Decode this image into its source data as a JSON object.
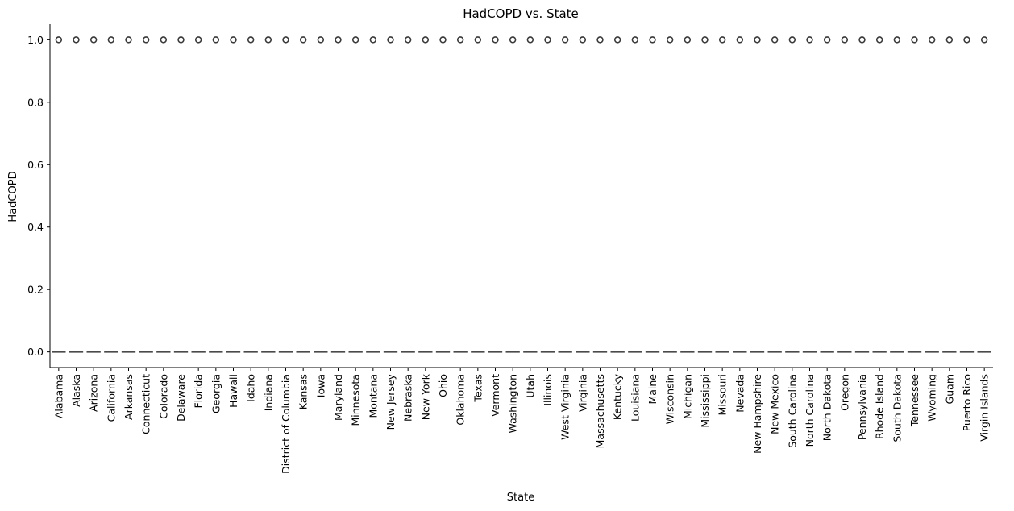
{
  "chart_data": {
    "type": "box",
    "title": "HadCOPD vs. State",
    "xlabel": "State",
    "ylabel": "HadCOPD",
    "ylim": [
      -0.05,
      1.05
    ],
    "yticks": [
      "0.0",
      "0.2",
      "0.4",
      "0.6",
      "0.8",
      "1.0"
    ],
    "ytick_values": [
      0.0,
      0.2,
      0.4,
      0.6,
      0.8,
      1.0
    ],
    "box_value": 0.0,
    "outlier_value": 1.0,
    "box_color": "#4a4a4a",
    "categories": [
      "Alabama",
      "Alaska",
      "Arizona",
      "California",
      "Arkansas",
      "Connecticut",
      "Colorado",
      "Delaware",
      "Florida",
      "Georgia",
      "Hawaii",
      "Idaho",
      "Indiana",
      "District of Columbia",
      "Kansas",
      "Iowa",
      "Maryland",
      "Minnesota",
      "Montana",
      "New Jersey",
      "Nebraska",
      "New York",
      "Ohio",
      "Oklahoma",
      "Texas",
      "Vermont",
      "Washington",
      "Utah",
      "Illinois",
      "West Virginia",
      "Virginia",
      "Massachusetts",
      "Kentucky",
      "Louisiana",
      "Maine",
      "Wisconsin",
      "Michigan",
      "Mississippi",
      "Missouri",
      "Nevada",
      "New Hampshire",
      "New Mexico",
      "South Carolina",
      "North Carolina",
      "North Dakota",
      "Oregon",
      "Pennsylvania",
      "Rhode Island",
      "South Dakota",
      "Tennessee",
      "Wyoming",
      "Guam",
      "Puerto Rico",
      "Virgin Islands"
    ]
  }
}
